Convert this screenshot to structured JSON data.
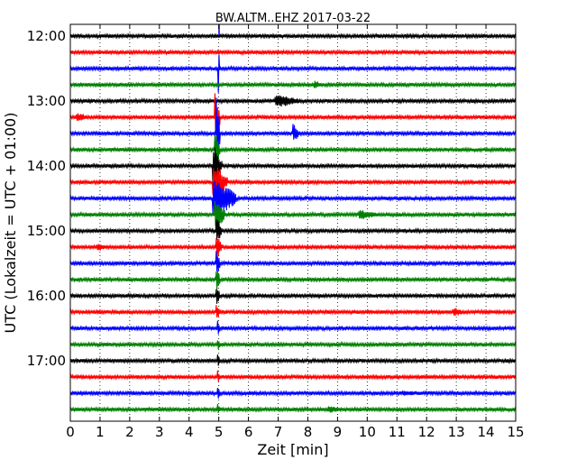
{
  "chart_data": {
    "type": "line",
    "subtype": "helicorder-seismogram",
    "title": "BW.ALTM..EHZ 2017-03-22",
    "xlabel": "Zeit  [min]",
    "ylabel": "UTC (Lokalzeit = UTC + 01:00)",
    "xlim": [
      0,
      15
    ],
    "x_ticks": [
      0,
      1,
      2,
      3,
      4,
      5,
      6,
      7,
      8,
      9,
      10,
      11,
      12,
      13,
      14,
      15
    ],
    "x_tick_labels": [
      "0",
      "1",
      "2",
      "3",
      "4",
      "5",
      "6",
      "7",
      "8",
      "9",
      "10",
      "11",
      "12",
      "13",
      "14",
      "15"
    ],
    "y_tick_labels": [
      "12:00",
      "13:00",
      "14:00",
      "15:00",
      "16:00",
      "17:00"
    ],
    "row_minutes": 15,
    "row_count": 24,
    "start_time": "12:00",
    "row_color_cycle": [
      "#000000",
      "#ff0000",
      "#0000ff",
      "#008000"
    ],
    "vertical_grid": "dotted",
    "events": [
      {
        "row": 2,
        "start_min": 4.97,
        "end_min": 5.03,
        "amplitude": 30,
        "color": "#0000ff",
        "note": "trace overflow to top"
      },
      {
        "row": 3,
        "start_min": 8.2,
        "end_min": 8.5,
        "amplitude": 5,
        "color": "#008000"
      },
      {
        "row": 4,
        "start_min": 6.9,
        "end_min": 7.8,
        "amplitude": 7,
        "color": "#000000"
      },
      {
        "row": 5,
        "start_min": 0.2,
        "end_min": 0.7,
        "amplitude": 5,
        "color": "#ff0000"
      },
      {
        "row": 5,
        "start_min": 4.85,
        "end_min": 5.05,
        "amplitude": 30,
        "color": "#ff0000"
      },
      {
        "row": 6,
        "start_min": 4.9,
        "end_min": 5.05,
        "amplitude": 40,
        "color": "#0000ff"
      },
      {
        "row": 6,
        "start_min": 7.5,
        "end_min": 7.7,
        "amplitude": 11,
        "color": "#0000ff"
      },
      {
        "row": 7,
        "start_min": 4.85,
        "end_min": 5.05,
        "amplitude": 22,
        "color": "#008000"
      },
      {
        "row": 8,
        "start_min": 4.8,
        "end_min": 5.1,
        "amplitude": 22,
        "color": "#000000"
      },
      {
        "row": 9,
        "start_min": 4.8,
        "end_min": 5.3,
        "amplitude": 22,
        "color": "#ff0000"
      },
      {
        "row": 10,
        "start_min": 4.8,
        "end_min": 5.6,
        "amplitude": 22,
        "color": "#0000ff"
      },
      {
        "row": 11,
        "start_min": 4.85,
        "end_min": 5.2,
        "amplitude": 20,
        "color": "#008000"
      },
      {
        "row": 11,
        "start_min": 9.7,
        "end_min": 10.5,
        "amplitude": 5,
        "color": "#008000"
      },
      {
        "row": 12,
        "start_min": 4.9,
        "end_min": 5.1,
        "amplitude": 18,
        "color": "#000000"
      },
      {
        "row": 13,
        "start_min": 4.9,
        "end_min": 5.1,
        "amplitude": 16,
        "color": "#ff0000"
      },
      {
        "row": 13,
        "start_min": 0.9,
        "end_min": 1.4,
        "amplitude": 4,
        "color": "#ff0000"
      },
      {
        "row": 14,
        "start_min": 4.9,
        "end_min": 5.05,
        "amplitude": 16,
        "color": "#0000ff"
      },
      {
        "row": 15,
        "start_min": 4.9,
        "end_min": 5.05,
        "amplitude": 14,
        "color": "#008000"
      },
      {
        "row": 16,
        "start_min": 4.9,
        "end_min": 5.05,
        "amplitude": 12,
        "color": "#000000"
      },
      {
        "row": 17,
        "start_min": 4.9,
        "end_min": 5.05,
        "amplitude": 10,
        "color": "#ff0000"
      },
      {
        "row": 17,
        "start_min": 12.9,
        "end_min": 13.3,
        "amplitude": 5,
        "color": "#ff0000"
      },
      {
        "row": 18,
        "start_min": 4.95,
        "end_min": 5.05,
        "amplitude": 9,
        "color": "#0000ff"
      },
      {
        "row": 19,
        "start_min": 4.95,
        "end_min": 5.05,
        "amplitude": 8,
        "color": "#008000"
      },
      {
        "row": 20,
        "start_min": 4.95,
        "end_min": 5.05,
        "amplitude": 8,
        "color": "#000000"
      },
      {
        "row": 21,
        "start_min": 4.95,
        "end_min": 5.05,
        "amplitude": 8,
        "color": "#ff0000"
      },
      {
        "row": 22,
        "start_min": 4.95,
        "end_min": 5.05,
        "amplitude": 9,
        "color": "#0000ff"
      },
      {
        "row": 22,
        "start_min": 11.2,
        "end_min": 12.2,
        "amplitude": 3,
        "color": "#0000ff"
      },
      {
        "row": 23,
        "start_min": 4.95,
        "end_min": 5.05,
        "amplitude": 8,
        "color": "#008000"
      },
      {
        "row": 23,
        "start_min": 8.7,
        "end_min": 9.2,
        "amplitude": 4,
        "color": "#008000"
      }
    ]
  }
}
